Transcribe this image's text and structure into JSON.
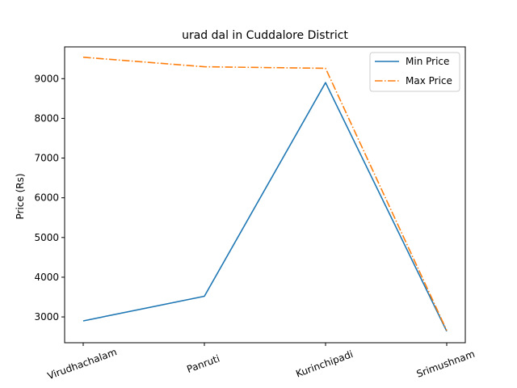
{
  "chart_data": {
    "type": "line",
    "title": "urad dal in Cuddalore District",
    "xlabel": "",
    "ylabel": "Price (Rs)",
    "categories": [
      "Virudhachalam",
      "Panruti",
      "Kurinchipadi",
      "Srimushnam"
    ],
    "yticks": [
      3000,
      4000,
      5000,
      6000,
      7000,
      8000,
      9000
    ],
    "ylim": [
      2350,
      9800
    ],
    "grid": false,
    "legend_position": "top-right",
    "series": [
      {
        "name": "Min Price",
        "values": [
          2900,
          3520,
          8900,
          2640
        ],
        "color": "#1f77b4",
        "style": "solid"
      },
      {
        "name": "Max Price",
        "values": [
          9540,
          9300,
          9260,
          2660
        ],
        "color": "#ff7f0e",
        "style": "dashdot"
      }
    ]
  }
}
